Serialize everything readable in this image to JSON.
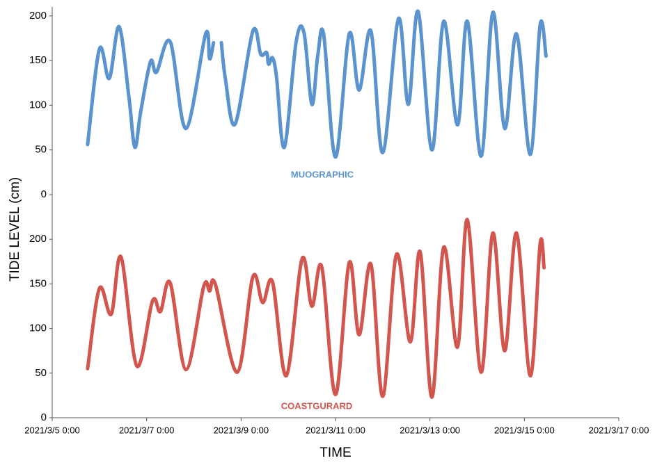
{
  "chart_data": [
    {
      "type": "line",
      "annotation": "MUOGRAPHIC",
      "color": "#5b93cf",
      "xlim": [
        "2021/3/5 0:00",
        "2021/3/17 0:00"
      ],
      "ylim": [
        0,
        210
      ],
      "yticks": [
        0,
        50,
        100,
        150,
        200
      ],
      "x": [
        "2021/3/5 18:00",
        "2021/3/6 0:00",
        "2021/3/6 5:00",
        "2021/3/6 10:00",
        "2021/3/6 15:00",
        "2021/3/6 18:00",
        "2021/3/6 21:00",
        "2021/3/7 2:00",
        "2021/3/7 5:00",
        "2021/3/7 12:00",
        "2021/3/7 20:00",
        "2021/3/8 6:00",
        "2021/3/8 8:00",
        "2021/3/8 10:00",
        "2021/3/8 12:00",
        "2021/3/8 14:00",
        "2021/3/8 16:00",
        "2021/3/8 21:00",
        "2021/3/9 6:00",
        "2021/3/9 10:00",
        "2021/3/9 13:00",
        "2021/3/9 14:00",
        "2021/3/9 16:00",
        "2021/3/9 18:00",
        "2021/3/9 22:00",
        "2021/3/10 4:00",
        "2021/3/10 8:00",
        "2021/3/10 12:00",
        "2021/3/10 15:00",
        "2021/3/10 18:00",
        "2021/3/11 0:00",
        "2021/3/11 7:00",
        "2021/3/11 12:00",
        "2021/3/11 18:00",
        "2021/3/12 0:00",
        "2021/3/12 8:00",
        "2021/3/12 13:00",
        "2021/3/12 18:00",
        "2021/3/13 1:00",
        "2021/3/13 7:00",
        "2021/3/13 14:00",
        "2021/3/13 19:00",
        "2021/3/14 2:00",
        "2021/3/14 8:00",
        "2021/3/14 14:00",
        "2021/3/14 20:00",
        "2021/3/15 3:00",
        "2021/3/15 8:00",
        "2021/3/15 11:00"
      ],
      "values": [
        56,
        163,
        130,
        188,
        109,
        53,
        93,
        149,
        137,
        171,
        74,
        180,
        152,
        170,
        null,
        170,
        130,
        79,
        183,
        157,
        159,
        146,
        153,
        132,
        53,
        171,
        181,
        101,
        156,
        179,
        42,
        180,
        117,
        183,
        47,
        197,
        101,
        205,
        50,
        194,
        78,
        194,
        43,
        204,
        74,
        180,
        45,
        190,
        155
      ]
    },
    {
      "type": "line",
      "annotation": "COASTGURARD",
      "color": "#d2554e",
      "y_label": "TIDE LEVEL (cm)",
      "x_label": "TIME",
      "xlim": [
        "2021/3/5 0:00",
        "2021/3/17 0:00"
      ],
      "xticks": [
        "2021/3/5 0:00",
        "2021/3/7 0:00",
        "2021/3/9 0:00",
        "2021/3/11 0:00",
        "2021/3/13 0:00",
        "2021/3/15 0:00",
        "2021/3/17 0:00"
      ],
      "ylim": [
        0,
        250
      ],
      "yticks": [
        0,
        50,
        100,
        150,
        200
      ],
      "x": [
        "2021/3/5 18:00",
        "2021/3/6 0:00",
        "2021/3/6 6:00",
        "2021/3/6 11:00",
        "2021/3/6 19:00",
        "2021/3/7 3:00",
        "2021/3/7 7:00",
        "2021/3/7 12:00",
        "2021/3/7 20:00",
        "2021/3/8 5:00",
        "2021/3/8 8:00",
        "2021/3/8 11:00",
        "2021/3/8 22:00",
        "2021/3/9 6:00",
        "2021/3/9 11:00",
        "2021/3/9 16:00",
        "2021/3/9 23:00",
        "2021/3/10 7:00",
        "2021/3/10 12:00",
        "2021/3/10 17:00",
        "2021/3/11 0:00",
        "2021/3/11 7:00",
        "2021/3/11 12:00",
        "2021/3/11 18:00",
        "2021/3/12 0:00",
        "2021/3/12 7:00",
        "2021/3/12 14:00",
        "2021/3/12 19:00",
        "2021/3/13 1:00",
        "2021/3/13 7:00",
        "2021/3/13 14:00",
        "2021/3/13 19:00",
        "2021/3/14 2:00",
        "2021/3/14 8:00",
        "2021/3/14 14:00",
        "2021/3/14 20:00",
        "2021/3/15 3:00",
        "2021/3/15 8:00",
        "2021/3/15 10:00"
      ],
      "values": [
        55,
        145,
        116,
        180,
        58,
        131,
        119,
        151,
        54,
        147,
        142,
        149,
        51,
        158,
        129,
        152,
        47,
        178,
        125,
        169,
        26,
        174,
        93,
        172,
        24,
        183,
        85,
        186,
        23,
        191,
        79,
        222,
        51,
        207,
        75,
        207,
        47,
        195,
        168
      ]
    }
  ]
}
